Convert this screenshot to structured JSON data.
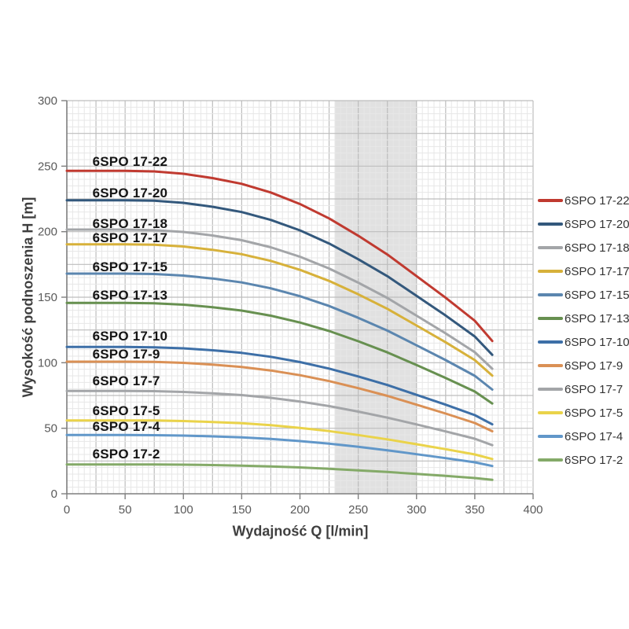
{
  "page": {
    "background": "#ffffff"
  },
  "axes": {
    "xlabel": "Wydajność Q [l/min]",
    "ylabel": "Wysokość podnoszenia H [m]"
  },
  "chart_data": {
    "type": "line",
    "title": "",
    "xlabel": "Wydajność Q [l/min]",
    "ylabel": "Wysokość podnoszenia H [m]",
    "xlim": [
      0,
      400
    ],
    "ylim": [
      0,
      300
    ],
    "x_ticks": [
      0,
      50,
      100,
      150,
      200,
      250,
      300,
      350,
      400
    ],
    "y_ticks": [
      0,
      50,
      100,
      150,
      200,
      250,
      300
    ],
    "grid": {
      "on": true,
      "minor_step": 5,
      "major_step": 25,
      "minor_color": "#e7e7e7",
      "major_color": "#bdbdbd",
      "axis_color": "#7f7f7f"
    },
    "operating_band": {
      "q_start": 230,
      "q_end": 300,
      "color": "#d9d9d9",
      "opacity": 0.8
    },
    "legend_position": "right",
    "tick_label_color": "#595959",
    "x": [
      0,
      25,
      50,
      75,
      100,
      125,
      150,
      175,
      200,
      225,
      250,
      275,
      300,
      325,
      350,
      365
    ],
    "series": [
      {
        "name": "6SPO 17-22",
        "color": "#c03a30",
        "label_q": 22,
        "label_h": 253,
        "values": [
          246.4,
          246.4,
          246.4,
          246.0,
          244.2,
          240.9,
          236.5,
          229.9,
          221.1,
          210.1,
          196.9,
          182.6,
          166.1,
          149.6,
          132.0,
          116.6
        ]
      },
      {
        "name": "6SPO 17-20",
        "color": "#33587c",
        "label_q": 22,
        "label_h": 229,
        "values": [
          224.0,
          224.0,
          224.0,
          223.6,
          222.0,
          219.0,
          215.0,
          209.0,
          201.0,
          191.0,
          179.0,
          166.0,
          151.0,
          136.0,
          120.0,
          106.0
        ]
      },
      {
        "name": "6SPO 17-18",
        "color": "#a3a5a8",
        "label_q": 22,
        "label_h": 206,
        "values": [
          201.6,
          201.6,
          201.6,
          201.2,
          199.8,
          197.1,
          193.5,
          188.1,
          180.9,
          171.9,
          161.1,
          149.4,
          135.9,
          122.4,
          108.0,
          95.4
        ]
      },
      {
        "name": "6SPO 17-17",
        "color": "#d7b13a",
        "label_q": 22,
        "label_h": 195,
        "values": [
          190.4,
          190.4,
          190.4,
          190.1,
          188.7,
          186.2,
          182.8,
          177.7,
          170.9,
          162.4,
          152.2,
          141.1,
          128.4,
          115.6,
          102.0,
          90.1
        ]
      },
      {
        "name": "6SPO 17-15",
        "color": "#5b86af",
        "label_q": 22,
        "label_h": 173,
        "values": [
          168.0,
          168.0,
          168.0,
          167.7,
          166.5,
          164.3,
          161.3,
          156.8,
          150.8,
          143.3,
          134.3,
          124.5,
          113.3,
          102.0,
          90.0,
          79.5
        ]
      },
      {
        "name": "6SPO 17-13",
        "color": "#679050",
        "label_q": 22,
        "label_h": 151,
        "values": [
          145.6,
          145.6,
          145.6,
          145.3,
          144.3,
          142.4,
          139.8,
          135.9,
          130.7,
          124.2,
          116.4,
          107.9,
          98.2,
          88.4,
          78.0,
          68.9
        ]
      },
      {
        "name": "6SPO 17-10",
        "color": "#3d6fa7",
        "label_q": 22,
        "label_h": 120,
        "values": [
          112.0,
          112.0,
          112.0,
          111.8,
          111.0,
          109.5,
          107.5,
          104.5,
          100.5,
          95.5,
          89.5,
          83.0,
          75.5,
          68.0,
          60.0,
          53.0
        ]
      },
      {
        "name": "6SPO 17-9",
        "color": "#da9055",
        "label_q": 22,
        "label_h": 106,
        "values": [
          100.8,
          100.8,
          100.8,
          100.6,
          99.9,
          98.6,
          96.8,
          94.1,
          90.5,
          86.0,
          80.6,
          74.7,
          68.0,
          61.2,
          54.0,
          47.7
        ]
      },
      {
        "name": "6SPO 17-7",
        "color": "#a3a5a8",
        "label_q": 22,
        "label_h": 86,
        "values": [
          78.4,
          78.4,
          78.4,
          78.3,
          77.7,
          76.7,
          75.3,
          73.2,
          70.4,
          66.9,
          62.7,
          58.1,
          52.9,
          47.6,
          42.0,
          37.1
        ]
      },
      {
        "name": "6SPO 17-5",
        "color": "#ead34a",
        "label_q": 22,
        "label_h": 63,
        "values": [
          56.0,
          56.0,
          56.0,
          55.9,
          55.5,
          54.8,
          53.8,
          52.3,
          50.3,
          47.8,
          44.8,
          41.5,
          37.8,
          34.0,
          30.0,
          26.5
        ]
      },
      {
        "name": "6SPO 17-4",
        "color": "#6197c9",
        "label_q": 22,
        "label_h": 51,
        "values": [
          44.8,
          44.8,
          44.8,
          44.7,
          44.4,
          43.8,
          43.0,
          41.8,
          40.2,
          38.2,
          35.8,
          33.2,
          30.2,
          27.2,
          24.0,
          21.2
        ]
      },
      {
        "name": "6SPO 17-2",
        "color": "#84aa68",
        "label_q": 22,
        "label_h": 30,
        "values": [
          22.4,
          22.4,
          22.4,
          22.4,
          22.2,
          21.9,
          21.5,
          20.9,
          20.1,
          19.1,
          17.9,
          16.6,
          15.1,
          13.6,
          12.0,
          10.6
        ]
      }
    ]
  }
}
